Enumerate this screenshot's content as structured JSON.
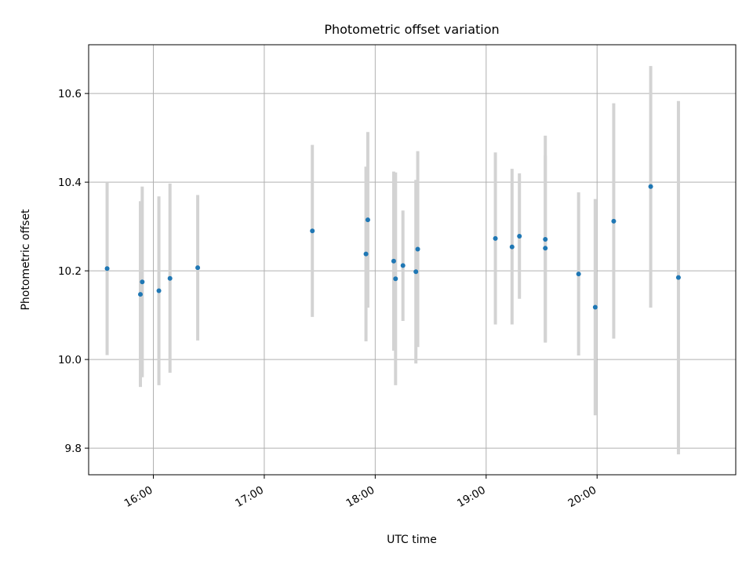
{
  "chart_data": {
    "type": "scatter",
    "title": "Photometric offset variation",
    "xlabel": "UTC time",
    "ylabel": "Photometric offset",
    "x_unit": "time (HH:MM)",
    "xlim": [
      "15:25",
      "21:15"
    ],
    "ylim": [
      9.74,
      10.71
    ],
    "xticks": [
      "16:00",
      "17:00",
      "18:00",
      "19:00",
      "20:00"
    ],
    "yticks": [
      9.8,
      10.0,
      10.2,
      10.4,
      10.6
    ],
    "grid": true,
    "error_bar_color": "#d3d3d3",
    "point_color": "#1f77b4",
    "points": [
      {
        "time": "15:35",
        "y": 10.205,
        "lo": 10.01,
        "hi": 10.4
      },
      {
        "time": "15:53",
        "y": 10.147,
        "lo": 9.938,
        "hi": 10.357
      },
      {
        "time": "15:54",
        "y": 10.175,
        "lo": 9.96,
        "hi": 10.39
      },
      {
        "time": "16:03",
        "y": 10.155,
        "lo": 9.942,
        "hi": 10.368
      },
      {
        "time": "16:09",
        "y": 10.183,
        "lo": 9.97,
        "hi": 10.397
      },
      {
        "time": "16:24",
        "y": 10.207,
        "lo": 10.043,
        "hi": 10.371
      },
      {
        "time": "17:26",
        "y": 10.29,
        "lo": 10.096,
        "hi": 10.484
      },
      {
        "time": "17:55",
        "y": 10.238,
        "lo": 10.041,
        "hi": 10.435
      },
      {
        "time": "17:56",
        "y": 10.315,
        "lo": 10.117,
        "hi": 10.513
      },
      {
        "time": "18:10",
        "y": 10.222,
        "lo": 10.02,
        "hi": 10.424
      },
      {
        "time": "18:11",
        "y": 10.182,
        "lo": 9.942,
        "hi": 10.422
      },
      {
        "time": "18:15",
        "y": 10.212,
        "lo": 10.087,
        "hi": 10.336
      },
      {
        "time": "18:22",
        "y": 10.198,
        "lo": 9.991,
        "hi": 10.405
      },
      {
        "time": "18:23",
        "y": 10.249,
        "lo": 10.028,
        "hi": 10.47
      },
      {
        "time": "19:05",
        "y": 10.273,
        "lo": 10.079,
        "hi": 10.467
      },
      {
        "time": "19:14",
        "y": 10.254,
        "lo": 10.079,
        "hi": 10.43
      },
      {
        "time": "19:18",
        "y": 10.278,
        "lo": 10.137,
        "hi": 10.42
      },
      {
        "time": "19:32",
        "y": 10.271,
        "lo": 10.038,
        "hi": 10.505
      },
      {
        "time": "19:32",
        "y": 10.251,
        "lo": 10.04,
        "hi": 10.46
      },
      {
        "time": "19:50",
        "y": 10.193,
        "lo": 10.009,
        "hi": 10.377
      },
      {
        "time": "19:59",
        "y": 10.118,
        "lo": 9.874,
        "hi": 10.362
      },
      {
        "time": "20:09",
        "y": 10.312,
        "lo": 10.047,
        "hi": 10.578
      },
      {
        "time": "20:29",
        "y": 10.39,
        "lo": 10.117,
        "hi": 10.662
      },
      {
        "time": "20:44",
        "y": 10.185,
        "lo": 9.786,
        "hi": 10.583
      }
    ]
  }
}
